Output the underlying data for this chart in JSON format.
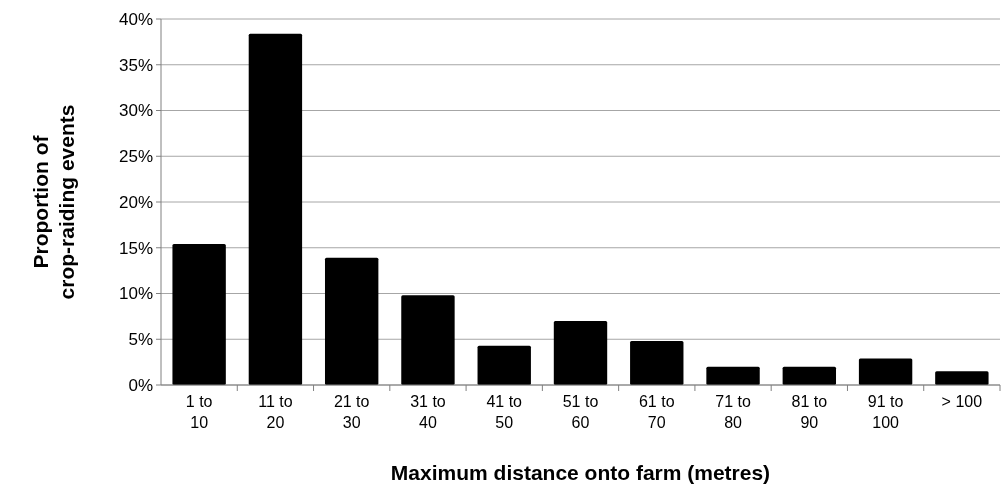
{
  "chart_data": {
    "type": "bar",
    "xlabel": "Maximum distance onto farm (metres)",
    "ylabel": "Proportion of crop-raiding events",
    "categories": [
      "1 to 10",
      "11 to 20",
      "21 to 30",
      "31 to 40",
      "41 to 50",
      "51 to 60",
      "61 to 70",
      "71 to 80",
      "81 to 90",
      "91 to 100",
      "> 100"
    ],
    "values": [
      15.4,
      38.4,
      13.9,
      9.8,
      4.3,
      7.0,
      4.8,
      2.0,
      2.0,
      2.9,
      1.5
    ],
    "color": "#000000",
    "ylim": [
      0,
      40
    ],
    "yticks": [
      {
        "value": 0,
        "label": "0%"
      },
      {
        "value": 5,
        "label": "5%"
      },
      {
        "value": 10,
        "label": "10%"
      },
      {
        "value": 15,
        "label": "15%"
      },
      {
        "value": 20,
        "label": "20%"
      },
      {
        "value": 25,
        "label": "25%"
      },
      {
        "value": 30,
        "label": "30%"
      },
      {
        "value": 35,
        "label": "35%"
      },
      {
        "value": 40,
        "label": "40%"
      }
    ],
    "grid": "y"
  }
}
